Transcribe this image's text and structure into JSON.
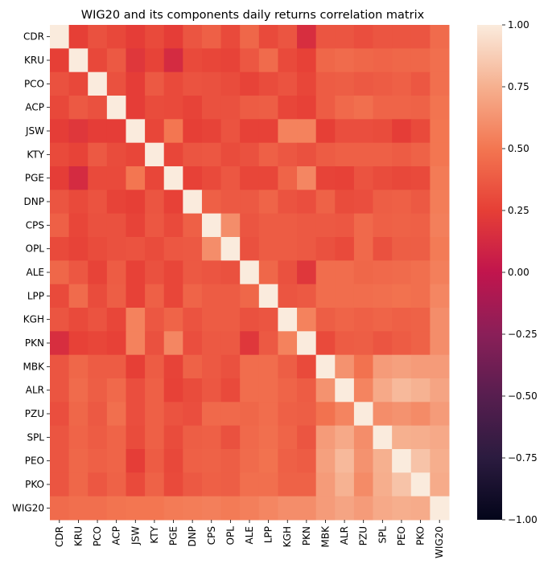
{
  "chart_data": {
    "type": "heatmap",
    "title": "WIG20 and its components daily returns correlation matrix",
    "xlabel": "",
    "ylabel": "",
    "labels": [
      "CDR",
      "KRU",
      "PCO",
      "ACP",
      "JSW",
      "KTY",
      "PGE",
      "DNP",
      "CPS",
      "OPL",
      "ALE",
      "LPP",
      "KGH",
      "PKN",
      "MBK",
      "ALR",
      "PZU",
      "SPL",
      "PEO",
      "PKO",
      "WIG20"
    ],
    "colorbar": {
      "min": -1.0,
      "max": 1.0,
      "ticks": [
        "1.00",
        "0.75",
        "0.50",
        "0.25",
        "0.00",
        "−0.25",
        "−0.50",
        "−0.75",
        "−1.00"
      ]
    },
    "matrix": [
      [
        1.0,
        0.25,
        0.33,
        0.29,
        0.24,
        0.3,
        0.24,
        0.35,
        0.4,
        0.3,
        0.43,
        0.3,
        0.35,
        0.15,
        0.35,
        0.35,
        0.32,
        0.35,
        0.35,
        0.35,
        0.45
      ],
      [
        0.25,
        1.0,
        0.29,
        0.37,
        0.2,
        0.27,
        0.13,
        0.3,
        0.28,
        0.27,
        0.36,
        0.45,
        0.3,
        0.26,
        0.43,
        0.45,
        0.43,
        0.42,
        0.43,
        0.43,
        0.47
      ],
      [
        0.33,
        0.29,
        1.0,
        0.33,
        0.24,
        0.37,
        0.3,
        0.34,
        0.33,
        0.31,
        0.27,
        0.31,
        0.34,
        0.28,
        0.38,
        0.39,
        0.37,
        0.38,
        0.4,
        0.36,
        0.47
      ],
      [
        0.29,
        0.37,
        0.33,
        1.0,
        0.24,
        0.31,
        0.3,
        0.27,
        0.33,
        0.33,
        0.38,
        0.39,
        0.28,
        0.26,
        0.38,
        0.44,
        0.47,
        0.42,
        0.42,
        0.41,
        0.49
      ],
      [
        0.24,
        0.2,
        0.24,
        0.24,
        1.0,
        0.28,
        0.5,
        0.25,
        0.27,
        0.34,
        0.26,
        0.26,
        0.55,
        0.55,
        0.25,
        0.32,
        0.32,
        0.31,
        0.24,
        0.3,
        0.5
      ],
      [
        0.3,
        0.27,
        0.37,
        0.31,
        0.28,
        1.0,
        0.28,
        0.35,
        0.36,
        0.31,
        0.33,
        0.4,
        0.36,
        0.33,
        0.38,
        0.4,
        0.4,
        0.4,
        0.38,
        0.41,
        0.5
      ],
      [
        0.24,
        0.13,
        0.3,
        0.3,
        0.5,
        0.28,
        1.0,
        0.26,
        0.3,
        0.36,
        0.28,
        0.28,
        0.42,
        0.57,
        0.27,
        0.26,
        0.34,
        0.31,
        0.29,
        0.3,
        0.52
      ],
      [
        0.35,
        0.3,
        0.34,
        0.27,
        0.25,
        0.35,
        0.26,
        1.0,
        0.4,
        0.37,
        0.37,
        0.42,
        0.34,
        0.32,
        0.41,
        0.31,
        0.32,
        0.39,
        0.4,
        0.37,
        0.53
      ],
      [
        0.4,
        0.28,
        0.33,
        0.33,
        0.27,
        0.36,
        0.3,
        0.4,
        1.0,
        0.6,
        0.35,
        0.38,
        0.38,
        0.37,
        0.37,
        0.36,
        0.44,
        0.4,
        0.41,
        0.4,
        0.54
      ],
      [
        0.3,
        0.27,
        0.31,
        0.33,
        0.34,
        0.31,
        0.36,
        0.37,
        0.6,
        1.0,
        0.33,
        0.38,
        0.38,
        0.37,
        0.33,
        0.3,
        0.44,
        0.33,
        0.39,
        0.39,
        0.52
      ],
      [
        0.43,
        0.36,
        0.27,
        0.38,
        0.26,
        0.33,
        0.28,
        0.37,
        0.35,
        0.33,
        1.0,
        0.43,
        0.33,
        0.2,
        0.46,
        0.46,
        0.43,
        0.44,
        0.45,
        0.47,
        0.54
      ],
      [
        0.3,
        0.45,
        0.31,
        0.39,
        0.26,
        0.4,
        0.28,
        0.42,
        0.38,
        0.38,
        0.43,
        1.0,
        0.35,
        0.37,
        0.46,
        0.46,
        0.46,
        0.47,
        0.48,
        0.47,
        0.57
      ],
      [
        0.35,
        0.3,
        0.34,
        0.28,
        0.55,
        0.36,
        0.42,
        0.34,
        0.38,
        0.38,
        0.33,
        0.35,
        1.0,
        0.55,
        0.39,
        0.42,
        0.4,
        0.42,
        0.4,
        0.41,
        0.6
      ],
      [
        0.15,
        0.26,
        0.28,
        0.26,
        0.55,
        0.33,
        0.57,
        0.32,
        0.37,
        0.37,
        0.2,
        0.37,
        0.55,
        1.0,
        0.3,
        0.38,
        0.39,
        0.35,
        0.38,
        0.41,
        0.6
      ],
      [
        0.35,
        0.43,
        0.38,
        0.38,
        0.25,
        0.38,
        0.27,
        0.41,
        0.37,
        0.33,
        0.46,
        0.46,
        0.39,
        0.3,
        1.0,
        0.62,
        0.48,
        0.66,
        0.68,
        0.66,
        0.66
      ],
      [
        0.35,
        0.45,
        0.39,
        0.44,
        0.32,
        0.4,
        0.26,
        0.31,
        0.36,
        0.3,
        0.46,
        0.46,
        0.42,
        0.38,
        0.62,
        1.0,
        0.56,
        0.72,
        0.79,
        0.76,
        0.7
      ],
      [
        0.32,
        0.43,
        0.37,
        0.47,
        0.32,
        0.4,
        0.34,
        0.32,
        0.44,
        0.44,
        0.43,
        0.46,
        0.4,
        0.39,
        0.48,
        0.56,
        1.0,
        0.6,
        0.62,
        0.59,
        0.66
      ],
      [
        0.35,
        0.42,
        0.38,
        0.42,
        0.31,
        0.4,
        0.31,
        0.39,
        0.4,
        0.33,
        0.44,
        0.47,
        0.42,
        0.35,
        0.66,
        0.72,
        0.6,
        1.0,
        0.75,
        0.74,
        0.72
      ],
      [
        0.35,
        0.43,
        0.4,
        0.42,
        0.24,
        0.38,
        0.29,
        0.4,
        0.41,
        0.39,
        0.45,
        0.48,
        0.4,
        0.38,
        0.68,
        0.79,
        0.62,
        0.75,
        1.0,
        0.83,
        0.74
      ],
      [
        0.35,
        0.43,
        0.36,
        0.41,
        0.3,
        0.41,
        0.3,
        0.37,
        0.4,
        0.39,
        0.47,
        0.47,
        0.41,
        0.41,
        0.66,
        0.76,
        0.59,
        0.74,
        0.83,
        1.0,
        0.73
      ],
      [
        0.45,
        0.47,
        0.47,
        0.49,
        0.5,
        0.5,
        0.52,
        0.53,
        0.54,
        0.52,
        0.54,
        0.57,
        0.6,
        0.6,
        0.66,
        0.7,
        0.66,
        0.72,
        0.74,
        0.73,
        1.0
      ]
    ]
  }
}
